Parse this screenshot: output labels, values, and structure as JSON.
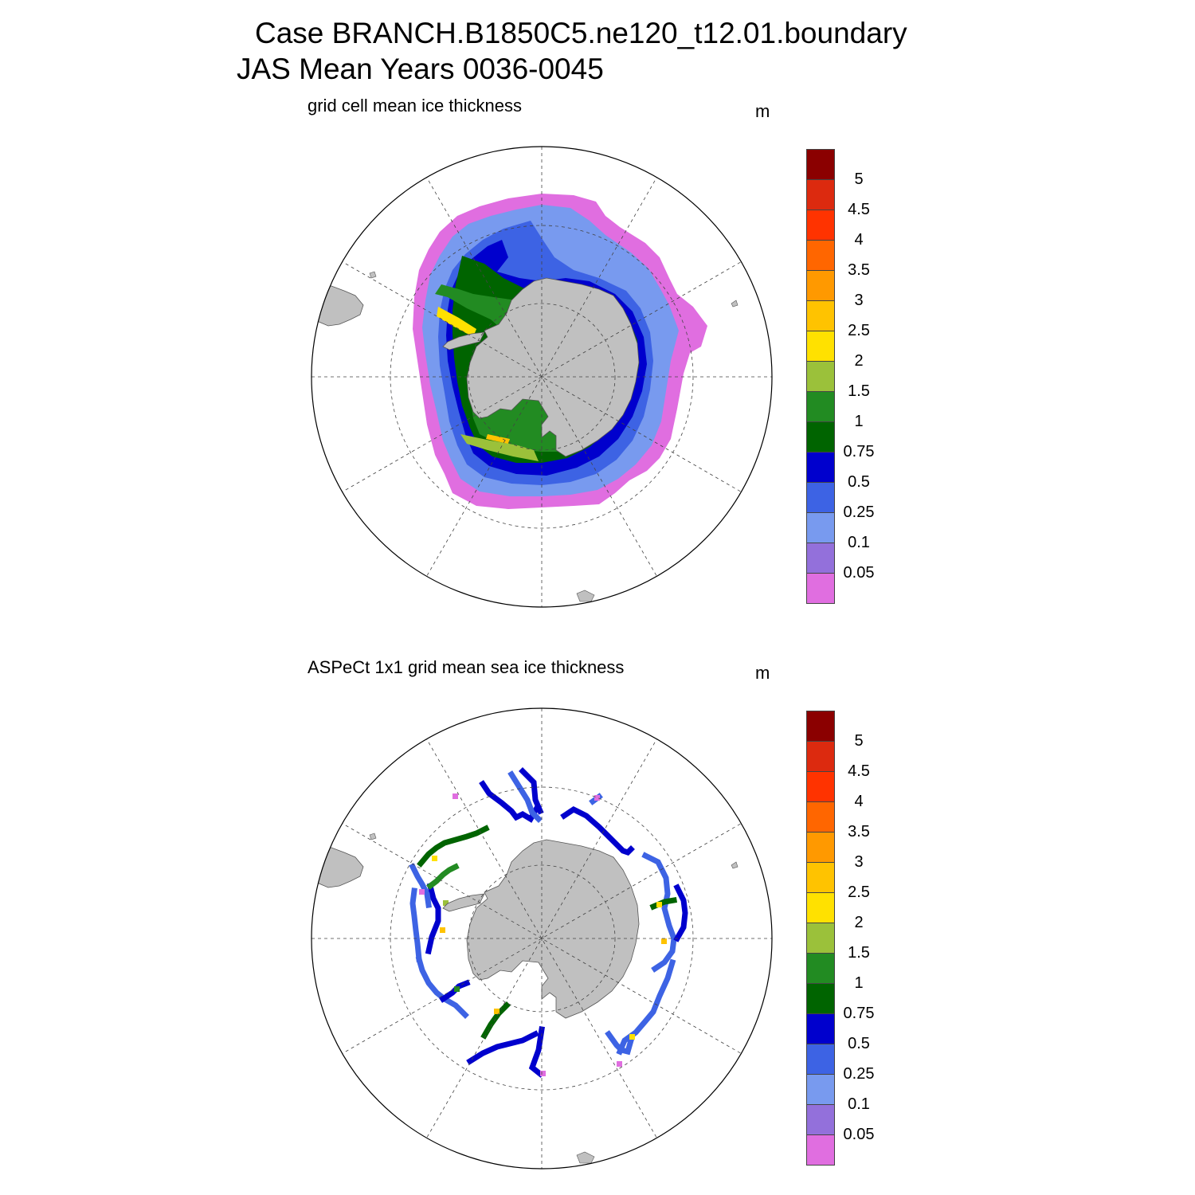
{
  "title": {
    "line1": "Case BRANCH.B1850C5.ne120_t12.01.boundary",
    "line2": "JAS Mean    Years 0036-0045"
  },
  "panels": [
    {
      "label": "grid cell mean ice thickness",
      "units": "m"
    },
    {
      "label": "ASPeCt 1x1 grid mean sea ice thickness",
      "units": "m"
    }
  ],
  "colorbar": {
    "levels": [
      "5",
      "4.5",
      "4",
      "3.5",
      "3",
      "2.5",
      "2",
      "1.5",
      "1",
      "0.75",
      "0.5",
      "0.25",
      "0.1",
      "0.05"
    ],
    "colors_top_to_bottom": [
      "#8b0000",
      "#dc2a0f",
      "#ff3300",
      "#ff6600",
      "#ff9900",
      "#ffc300",
      "#ffe100",
      "#9bc13a",
      "#228b22",
      "#006400",
      "#0000cd",
      "#3d63e4",
      "#789aef",
      "#9370db",
      "#e06ee0"
    ]
  },
  "colors": {
    "land": "#c0c0c0",
    "coastline": "#555555",
    "grid": "#444444"
  }
}
